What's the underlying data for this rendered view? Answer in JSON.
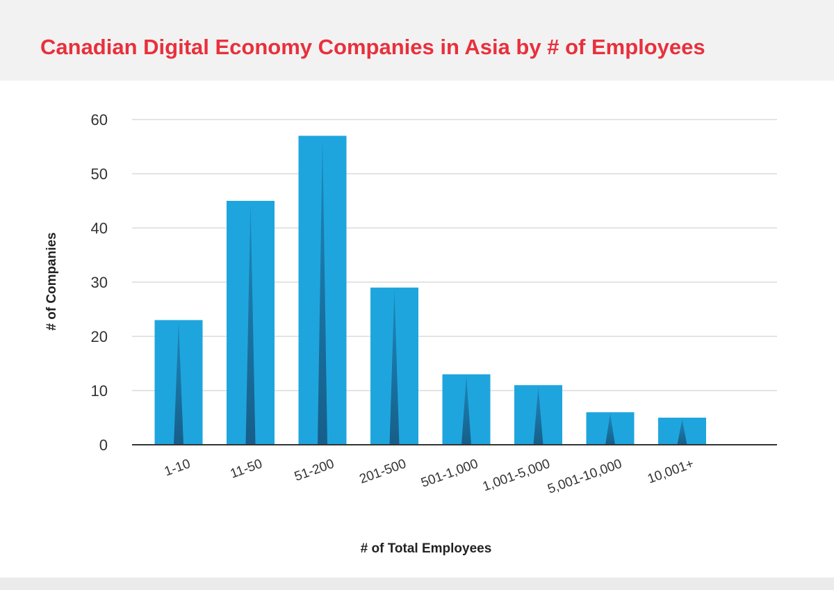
{
  "chart_data": {
    "type": "bar",
    "title": "Canadian Digital Economy Companies in Asia by # of Employees",
    "xlabel": "# of Total Employees",
    "ylabel": "# of Companies",
    "categories": [
      "1-10",
      "11-50",
      "51-200",
      "201-500",
      "501-1,000",
      "1,001-5,000",
      "5,001-10,000",
      "10,001+"
    ],
    "values": [
      23,
      45,
      57,
      29,
      13,
      11,
      6,
      5
    ],
    "ylim": [
      0,
      60
    ],
    "yticks": [
      0,
      10,
      20,
      30,
      40,
      50,
      60
    ],
    "grid": true,
    "legend": "none",
    "colors": {
      "bar": "#1fa5de",
      "bar_shade": "#16567f",
      "title": "#e8303c",
      "grid": "#c8c8c8",
      "axis": "#333333"
    }
  }
}
